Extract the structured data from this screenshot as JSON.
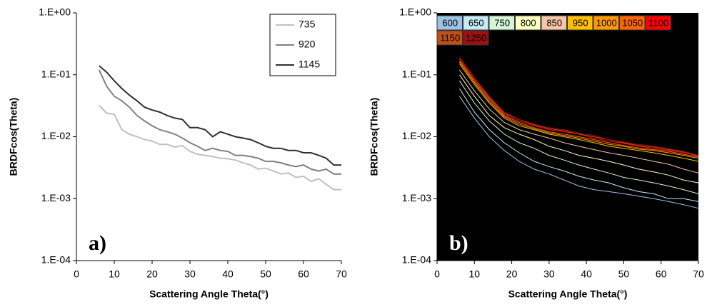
{
  "chart_data": [
    {
      "type": "line",
      "annotation": "a)",
      "ylabel": "BRDFcos(Theta)",
      "xlabel": "Scattering Angle Theta(°)",
      "log_y": true,
      "grid": false,
      "background": "#ffffff",
      "legend": "upper right",
      "xlim": [
        0,
        70
      ],
      "xticks": [
        0,
        10,
        20,
        30,
        40,
        50,
        60,
        70
      ],
      "ylim": [
        0.0001,
        1
      ],
      "yticks": [
        {
          "value": 0.0001,
          "label": "1.E-04"
        },
        {
          "value": 0.001,
          "label": "1.E-03"
        },
        {
          "value": 0.01,
          "label": "1.E-02"
        },
        {
          "value": 0.1,
          "label": "1.E-01"
        },
        {
          "value": 1,
          "label": "1.E+00"
        }
      ],
      "x": [
        6,
        8,
        10,
        12,
        14,
        16,
        18,
        20,
        22,
        24,
        26,
        28,
        30,
        32,
        34,
        36,
        38,
        40,
        42,
        44,
        46,
        48,
        50,
        52,
        54,
        56,
        58,
        60,
        62,
        64,
        66,
        68,
        70
      ],
      "series": [
        {
          "name": "735",
          "color": "#c0c0c0",
          "values": [
            0.032,
            0.024,
            0.023,
            0.013,
            0.011,
            0.01,
            0.009,
            0.0085,
            0.0075,
            0.0075,
            0.0068,
            0.0072,
            0.0058,
            0.0052,
            0.005,
            0.0048,
            0.0045,
            0.0044,
            0.0042,
            0.0038,
            0.0035,
            0.003,
            0.0031,
            0.0028,
            0.0025,
            0.0026,
            0.0022,
            0.0023,
            0.0019,
            0.0021,
            0.0017,
            0.0014,
            0.0014
          ]
        },
        {
          "name": "920",
          "color": "#808080",
          "values": [
            0.12,
            0.065,
            0.045,
            0.038,
            0.03,
            0.022,
            0.018,
            0.015,
            0.013,
            0.012,
            0.011,
            0.0095,
            0.008,
            0.007,
            0.006,
            0.0065,
            0.006,
            0.0058,
            0.005,
            0.005,
            0.0048,
            0.0045,
            0.004,
            0.004,
            0.0038,
            0.0035,
            0.0033,
            0.0035,
            0.003,
            0.0028,
            0.003,
            0.0025,
            0.0025
          ]
        },
        {
          "name": "1145",
          "color": "#303030",
          "values": [
            0.14,
            0.11,
            0.08,
            0.06,
            0.047,
            0.038,
            0.03,
            0.027,
            0.025,
            0.022,
            0.02,
            0.019,
            0.014,
            0.014,
            0.013,
            0.01,
            0.012,
            0.011,
            0.01,
            0.0095,
            0.009,
            0.008,
            0.007,
            0.0065,
            0.0065,
            0.006,
            0.006,
            0.0055,
            0.0055,
            0.005,
            0.0045,
            0.0035,
            0.0035
          ]
        }
      ]
    },
    {
      "type": "line",
      "annotation": "b)",
      "ylabel": "BRDFcos(Theta)",
      "xlabel": "Scattering Angle Theta(°)",
      "log_y": true,
      "grid": false,
      "background": "#000000",
      "legend": "top",
      "xlim": [
        0,
        70
      ],
      "xticks": [
        0,
        10,
        20,
        30,
        40,
        50,
        60,
        70
      ],
      "ylim": [
        0.0001,
        1
      ],
      "yticks": [
        {
          "value": 0.0001,
          "label": "1.E-04"
        },
        {
          "value": 0.001,
          "label": "1.E-03"
        },
        {
          "value": 0.01,
          "label": "1.E-02"
        },
        {
          "value": 0.1,
          "label": "1.E-01"
        },
        {
          "value": 1,
          "label": "1.E+00"
        }
      ],
      "x": [
        6,
        10,
        14,
        18,
        22,
        26,
        30,
        34,
        38,
        42,
        46,
        50,
        54,
        58,
        62,
        66,
        70
      ],
      "series": [
        {
          "name": "600",
          "color": "#9cc3e6",
          "values": [
            0.045,
            0.02,
            0.01,
            0.006,
            0.004,
            0.003,
            0.0025,
            0.002,
            0.0016,
            0.0014,
            0.0013,
            0.0012,
            0.0011,
            0.001,
            0.0009,
            0.0008,
            0.0007
          ]
        },
        {
          "name": "650",
          "color": "#c5ecf5",
          "values": [
            0.06,
            0.025,
            0.013,
            0.008,
            0.0055,
            0.004,
            0.0033,
            0.0028,
            0.0023,
            0.002,
            0.0018,
            0.0015,
            0.0013,
            0.0012,
            0.001,
            0.001,
            0.0009
          ]
        },
        {
          "name": "750",
          "color": "#d6f5d6",
          "values": [
            0.08,
            0.035,
            0.018,
            0.011,
            0.008,
            0.0065,
            0.005,
            0.0042,
            0.0035,
            0.003,
            0.0026,
            0.0022,
            0.002,
            0.0018,
            0.0016,
            0.0014,
            0.0012
          ]
        },
        {
          "name": "800",
          "color": "#ffffbf",
          "values": [
            0.1,
            0.045,
            0.022,
            0.014,
            0.011,
            0.009,
            0.007,
            0.006,
            0.005,
            0.0045,
            0.004,
            0.0035,
            0.003,
            0.0027,
            0.0024,
            0.002,
            0.0018
          ]
        },
        {
          "name": "850",
          "color": "#f7c6a6",
          "values": [
            0.12,
            0.055,
            0.028,
            0.017,
            0.013,
            0.011,
            0.0095,
            0.008,
            0.007,
            0.0062,
            0.0055,
            0.005,
            0.0045,
            0.004,
            0.0036,
            0.003,
            0.0026
          ]
        },
        {
          "name": "950",
          "color": "#ffc000",
          "values": [
            0.15,
            0.07,
            0.035,
            0.02,
            0.015,
            0.013,
            0.011,
            0.01,
            0.009,
            0.008,
            0.007,
            0.0065,
            0.006,
            0.0055,
            0.005,
            0.0045,
            0.004
          ]
        },
        {
          "name": "1000",
          "color": "#ff9900",
          "values": [
            0.16,
            0.075,
            0.037,
            0.021,
            0.016,
            0.0135,
            0.0115,
            0.0105,
            0.0095,
            0.0085,
            0.0075,
            0.007,
            0.0063,
            0.006,
            0.0055,
            0.005,
            0.0045
          ]
        },
        {
          "name": "1050",
          "color": "#ff6600",
          "values": [
            0.17,
            0.08,
            0.04,
            0.022,
            0.017,
            0.014,
            0.012,
            0.011,
            0.01,
            0.009,
            0.008,
            0.0072,
            0.0066,
            0.0062,
            0.0058,
            0.0052,
            0.0047
          ]
        },
        {
          "name": "1100",
          "color": "#ff0000",
          "values": [
            0.18,
            0.085,
            0.042,
            0.023,
            0.018,
            0.015,
            0.013,
            0.012,
            0.011,
            0.0095,
            0.0085,
            0.0078,
            0.007,
            0.0065,
            0.006,
            0.0055,
            0.005
          ]
        },
        {
          "name": "1150",
          "color": "#c0501a",
          "values": [
            0.19,
            0.09,
            0.043,
            0.024,
            0.019,
            0.0155,
            0.0135,
            0.0125,
            0.011,
            0.01,
            0.009,
            0.008,
            0.0072,
            0.0068,
            0.0062,
            0.0057,
            0.0048
          ]
        },
        {
          "name": "1250",
          "color": "#9c1010",
          "values": [
            0.19,
            0.09,
            0.045,
            0.025,
            0.019,
            0.016,
            0.014,
            0.013,
            0.0115,
            0.0105,
            0.009,
            0.0082,
            0.0075,
            0.007,
            0.0064,
            0.0058,
            0.005
          ]
        }
      ]
    }
  ]
}
